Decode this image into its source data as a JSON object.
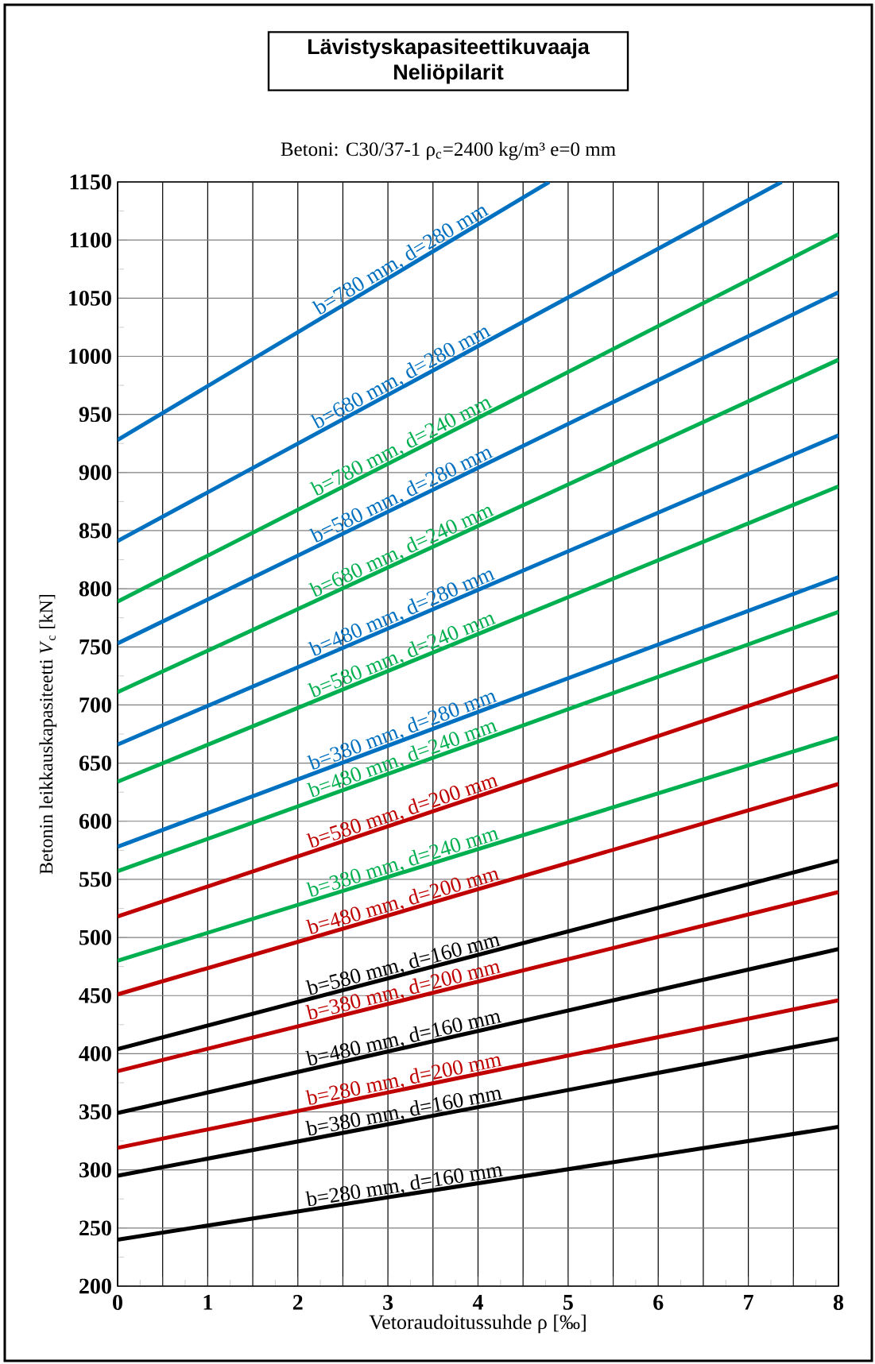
{
  "chart_data": {
    "type": "line",
    "title": "Lävistyskapasiteettikuvaaja Neliöpilarit",
    "subtitle": "Betoni: C30/37-1   ρ$_{c}$=2400 kg/m³   e=0 mm",
    "xlabel": "Vetoraudoitussuhde   ρ [‰]",
    "ylabel": "Betonin leikkauskapasiteetti    *V*$_{c}$ [kN]",
    "xlim": [
      0,
      8
    ],
    "ylim": [
      200,
      1150
    ],
    "xticks": [
      0,
      {
        "value": 0.5,
        "label": null
      },
      1,
      {
        "value": 1.5,
        "label": null
      },
      2,
      {
        "value": 2.5,
        "label": null
      },
      3,
      {
        "value": 3.5,
        "label": null
      },
      4,
      {
        "value": 4.5,
        "label": null
      },
      5,
      {
        "value": 5.5,
        "label": null
      },
      6,
      {
        "value": 6.5,
        "label": null
      },
      7,
      {
        "value": 7.5,
        "label": null
      },
      8
    ],
    "yticks": [
      200,
      250,
      300,
      350,
      400,
      450,
      500,
      550,
      600,
      650,
      700,
      750,
      800,
      850,
      900,
      950,
      1000,
      1050,
      1100,
      1150
    ],
    "grid": true,
    "legend": false,
    "series": [
      {
        "name": "b=780 mm, d=280 mm",
        "color": "#0070c0",
        "x": [
          0,
          4.79
        ],
        "values": [
          928,
          1150
        ]
      },
      {
        "name": "b=680 mm, d=280 mm",
        "color": "#0070c0",
        "x": [
          0,
          7.37
        ],
        "values": [
          841,
          1150
        ]
      },
      {
        "name": "b=780 mm, d=240 mm",
        "color": "#00b050",
        "x": [
          0,
          8
        ],
        "values": [
          789,
          1105
        ]
      },
      {
        "name": "b=580 mm, d=280 mm",
        "color": "#0070c0",
        "x": [
          0,
          8
        ],
        "values": [
          753,
          1055
        ]
      },
      {
        "name": "b=680 mm, d=240 mm",
        "color": "#00b050",
        "x": [
          0,
          8
        ],
        "values": [
          711,
          997
        ]
      },
      {
        "name": "b=480 mm, d=280 mm",
        "color": "#0070c0",
        "x": [
          0,
          8
        ],
        "values": [
          666,
          932
        ]
      },
      {
        "name": "b=580 mm, d=240 mm",
        "color": "#00b050",
        "x": [
          0,
          8
        ],
        "values": [
          634,
          888
        ]
      },
      {
        "name": "b=380 mm, d=280 mm",
        "color": "#0070c0",
        "x": [
          0,
          8
        ],
        "values": [
          578,
          810
        ]
      },
      {
        "name": "b=480 mm, d=240 mm",
        "color": "#00b050",
        "x": [
          0,
          8
        ],
        "values": [
          557,
          780
        ]
      },
      {
        "name": "b=580 mm, d=200 mm",
        "color": "#c00000",
        "x": [
          0,
          8
        ],
        "values": [
          518,
          725
        ]
      },
      {
        "name": "b=380 mm, d=240 mm",
        "color": "#00b050",
        "x": [
          0,
          8
        ],
        "values": [
          480,
          672
        ]
      },
      {
        "name": "b=480 mm, d=200 mm",
        "color": "#c00000",
        "x": [
          0,
          8
        ],
        "values": [
          451,
          632
        ]
      },
      {
        "name": "b=580 mm, d=160 mm",
        "color": "#000000",
        "x": [
          0,
          8
        ],
        "values": [
          404,
          566
        ]
      },
      {
        "name": "b=380 mm, d=200 mm",
        "color": "#c00000",
        "x": [
          0,
          8
        ],
        "values": [
          385,
          539
        ]
      },
      {
        "name": "b=480 mm, d=160 mm",
        "color": "#000000",
        "x": [
          0,
          8
        ],
        "values": [
          349,
          490
        ]
      },
      {
        "name": "b=280 mm, d=200 mm",
        "color": "#c00000",
        "x": [
          0,
          8
        ],
        "values": [
          319,
          446
        ]
      },
      {
        "name": "b=380 mm, d=160 mm",
        "color": "#000000",
        "x": [
          0,
          8
        ],
        "values": [
          295,
          413
        ]
      },
      {
        "name": "b=280 mm, d=160 mm",
        "color": "#000000",
        "x": [
          0,
          8
        ],
        "values": [
          240,
          337
        ]
      }
    ]
  }
}
